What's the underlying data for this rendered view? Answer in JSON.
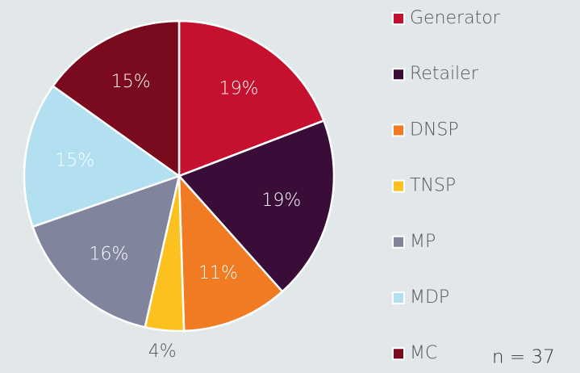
{
  "chart_data": {
    "type": "pie",
    "categories": [
      "Generator",
      "Retailer",
      "DNSP",
      "TNSP",
      "MP",
      "MDP",
      "MC"
    ],
    "values": [
      19,
      19,
      11,
      4,
      16,
      15,
      15
    ],
    "value_labels": [
      "19%",
      "19%",
      "11%",
      "4%",
      "16%",
      "15%",
      "15%"
    ],
    "colors": [
      "#c5112f",
      "#3a0c38",
      "#f07b22",
      "#fcc11f",
      "#80849c",
      "#b2e0f0",
      "#7a0b1e"
    ],
    "annotation": "n = 37",
    "legend": "right"
  }
}
